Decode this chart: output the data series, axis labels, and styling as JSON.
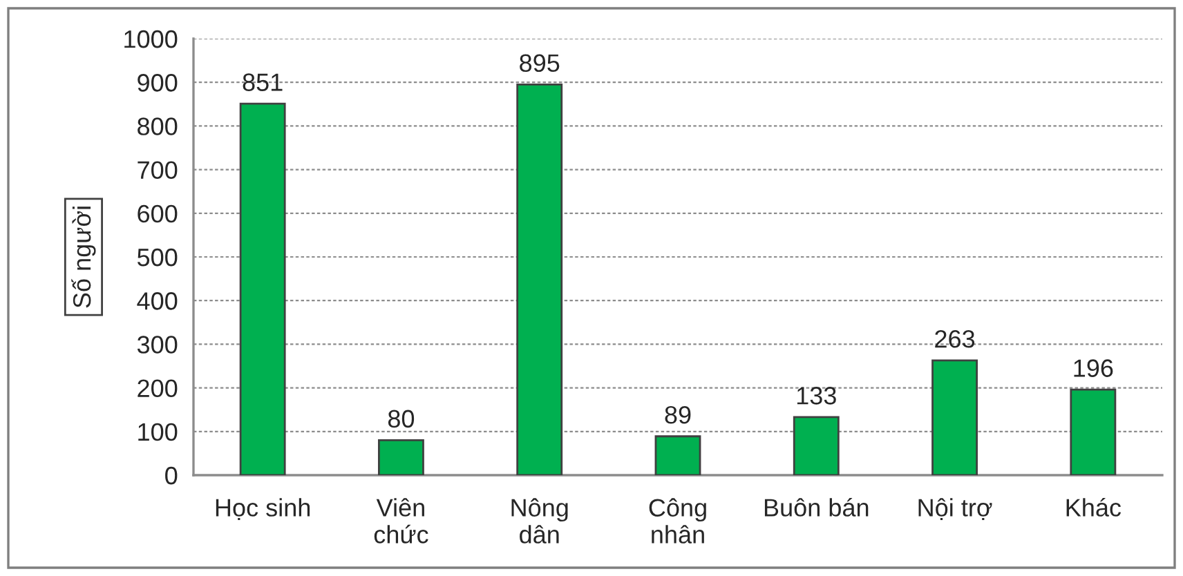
{
  "chart_data": {
    "type": "bar",
    "ylabel": "Số người",
    "categories": [
      "Học sinh",
      "Viên\nchức",
      "Nông\ndân",
      "Công\nnhân",
      "Buôn bán",
      "Nội trợ",
      "Khác"
    ],
    "values": [
      851,
      80,
      895,
      89,
      133,
      263,
      196
    ],
    "color": "#00b050",
    "ylim": [
      0,
      1000
    ],
    "yticks": [
      0,
      100,
      200,
      300,
      400,
      500,
      600,
      700,
      800,
      900,
      1000
    ],
    "grid": "y",
    "data_labels": true
  }
}
